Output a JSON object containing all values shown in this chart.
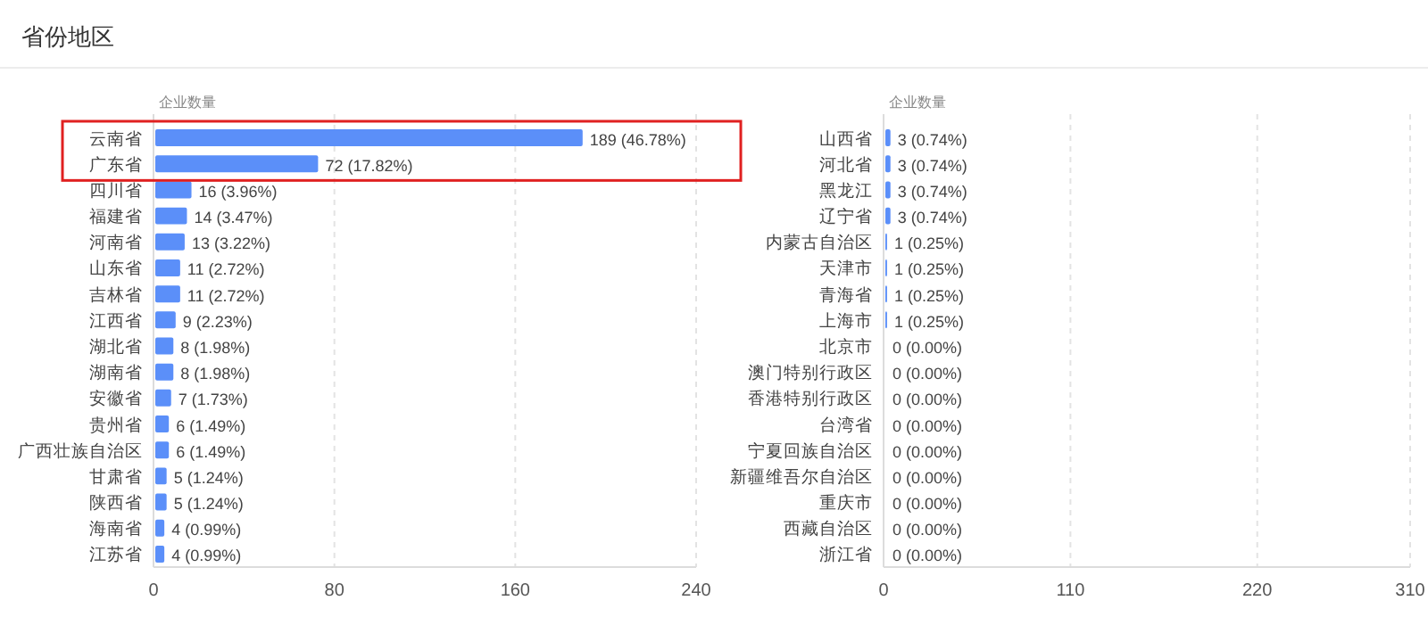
{
  "chart_data": [
    {
      "type": "bar",
      "orientation": "horizontal",
      "title": "省份地区",
      "xlabel": "企业数量",
      "color": "#5b8ff9",
      "grid": "x",
      "xlim": [
        0,
        240
      ],
      "xticks": [
        0,
        80,
        160,
        240
      ],
      "categories": [
        "云南省",
        "广东省",
        "四川省",
        "福建省",
        "河南省",
        "山东省",
        "吉林省",
        "江西省",
        "湖北省",
        "湖南省",
        "安徽省",
        "贵州省",
        "广西壮族自治区",
        "甘肃省",
        "陕西省",
        "海南省",
        "江苏省"
      ],
      "values": [
        189,
        72,
        16,
        14,
        13,
        11,
        11,
        9,
        8,
        8,
        7,
        6,
        6,
        5,
        5,
        4,
        4
      ],
      "value_labels": [
        "189 (46.78%)",
        "72 (17.82%)",
        "16 (3.96%)",
        "14 (3.47%)",
        "13 (3.22%)",
        "11 (2.72%)",
        "11 (2.72%)",
        "9 (2.23%)",
        "8 (1.98%)",
        "8 (1.98%)",
        "7 (1.73%)",
        "6 (1.49%)",
        "6 (1.49%)",
        "5 (1.24%)",
        "5 (1.24%)",
        "4 (0.99%)",
        "4 (0.99%)"
      ]
    },
    {
      "type": "bar",
      "orientation": "horizontal",
      "xlabel": "企业数量",
      "color": "#5b8ff9",
      "grid": "x",
      "xlim": [
        0,
        310
      ],
      "xticks": [
        0,
        110,
        220,
        310
      ],
      "categories": [
        "山西省",
        "河北省",
        "黑龙江",
        "辽宁省",
        "内蒙古自治区",
        "天津市",
        "青海省",
        "上海市",
        "北京市",
        "澳门特别行政区",
        "香港特别行政区",
        "台湾省",
        "宁夏回族自治区",
        "新疆维吾尔自治区",
        "重庆市",
        "西藏自治区",
        "浙江省"
      ],
      "values": [
        3,
        3,
        3,
        3,
        1,
        1,
        1,
        1,
        0,
        0,
        0,
        0,
        0,
        0,
        0,
        0,
        0
      ],
      "value_labels": [
        "3 (0.74%)",
        "3 (0.74%)",
        "3 (0.74%)",
        "3 (0.74%)",
        "1 (0.25%)",
        "1 (0.25%)",
        "1 (0.25%)",
        "1 (0.25%)",
        "0 (0.00%)",
        "0 (0.00%)",
        "0 (0.00%)",
        "0 (0.00%)",
        "0 (0.00%)",
        "0 (0.00%)",
        "0 (0.00%)",
        "0 (0.00%)",
        "0 (0.00%)"
      ]
    }
  ]
}
